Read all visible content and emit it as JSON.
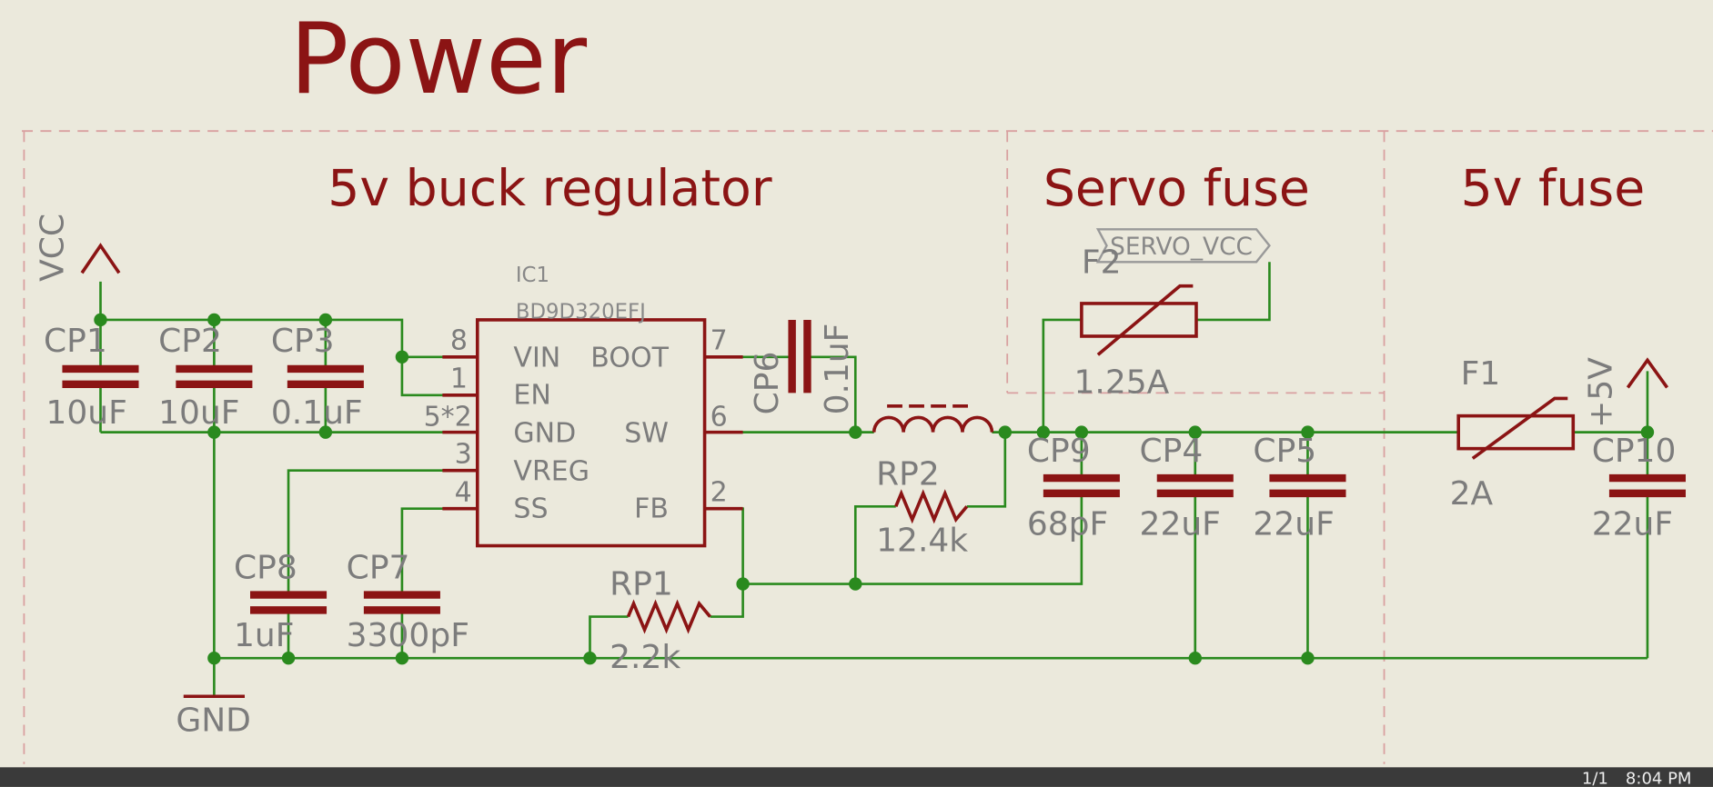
{
  "title": "Power",
  "sections": [
    {
      "label": "5v buck regulator"
    },
    {
      "label": "Servo fuse"
    },
    {
      "label": "5v fuse"
    }
  ],
  "ic": {
    "ref": "IC1",
    "value": "BD9D320EFJ",
    "pins": [
      {
        "number": "8",
        "name": "VIN"
      },
      {
        "number": "1",
        "name": "EN"
      },
      {
        "number": "5*2",
        "name": "GND"
      },
      {
        "number": "3",
        "name": "VREG"
      },
      {
        "number": "4",
        "name": "SS"
      },
      {
        "number": "7",
        "name": "BOOT"
      },
      {
        "number": "6",
        "name": "SW"
      },
      {
        "number": "2",
        "name": "FB"
      }
    ]
  },
  "components": [
    {
      "ref": "CP1",
      "value": "10uF"
    },
    {
      "ref": "CP2",
      "value": "10uF"
    },
    {
      "ref": "CP3",
      "value": "0.1uF"
    },
    {
      "ref": "CP8",
      "value": "1uF"
    },
    {
      "ref": "CP7",
      "value": "3300pF"
    },
    {
      "ref": "CP6",
      "value": "0.1uF"
    },
    {
      "ref": "RP1",
      "value": "2.2k"
    },
    {
      "ref": "RP2",
      "value": "12.4k"
    },
    {
      "ref": "CP9",
      "value": "68pF"
    },
    {
      "ref": "CP4",
      "value": "22uF"
    },
    {
      "ref": "CP5",
      "value": "22uF"
    },
    {
      "ref": "F2",
      "value": "1.25A"
    },
    {
      "ref": "F1",
      "value": "2A"
    },
    {
      "ref": "CP10",
      "value": "22uF"
    }
  ],
  "power_ports": [
    {
      "label": "VCC"
    },
    {
      "label": "GND"
    },
    {
      "label": "+5V"
    }
  ],
  "net_labels": [
    {
      "label": "SERVO_VCC"
    }
  ],
  "status_bar": {
    "page": "1/1",
    "time": "8:04 PM"
  }
}
